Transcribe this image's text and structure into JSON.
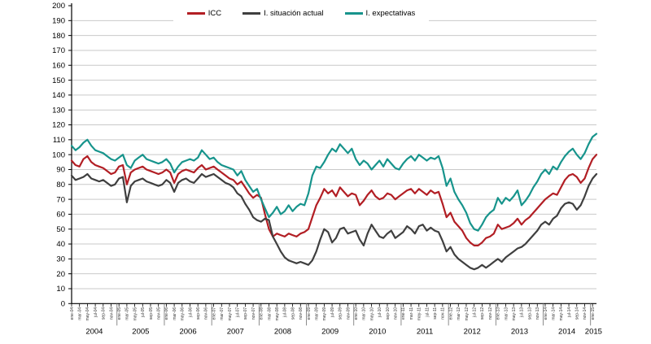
{
  "legend": {
    "items": [
      {
        "label": "ICC",
        "color": "#b21e24"
      },
      {
        "label": "I. situación actual",
        "color": "#3f3f3f"
      },
      {
        "label": "I. expectativas",
        "color": "#17948c"
      }
    ]
  },
  "chart_data": {
    "type": "line",
    "title": "",
    "xlabel": "",
    "ylabel": "",
    "ylim": [
      0,
      200
    ],
    "y_ticks": [
      0,
      10,
      20,
      30,
      40,
      50,
      60,
      70,
      80,
      90,
      100,
      110,
      120,
      130,
      140,
      150,
      160,
      170,
      180,
      190,
      200
    ],
    "grid": true,
    "legend_position": "top-center",
    "years": [
      "2004",
      "2005",
      "2006",
      "2007",
      "2008",
      "2009",
      "2010",
      "2011",
      "2012",
      "2013",
      "2014",
      "2015"
    ],
    "x_tick_labels": [
      "ene-04",
      "mar-04",
      "may-04",
      "jul-04",
      "sep-04",
      "nov-04",
      "ene-05",
      "mar-05",
      "may-05",
      "jul-05",
      "sep-05",
      "nov-05",
      "ene-06",
      "mar-06",
      "may-06",
      "jul-06",
      "sep-06",
      "nov-06",
      "ene-07",
      "mar-07",
      "may-07",
      "jul-07",
      "sep-07",
      "nov-07",
      "ene-08",
      "mar-08",
      "may-08",
      "jul-08",
      "sep-08",
      "nov-08",
      "ene-09",
      "mar-09",
      "may-09",
      "jul-09",
      "sep-09",
      "nov-09",
      "ene-10",
      "mar-10",
      "may-10",
      "jul-10",
      "sep-10",
      "nov-10",
      "ene-11",
      "mar-11",
      "may-11",
      "jul-11",
      "sep-11",
      "nov-11",
      "ene-12",
      "mar-12",
      "may-12",
      "jul-12",
      "sep-12",
      "nov-12",
      "ene-13",
      "mar-13",
      "may-13",
      "jul-13",
      "sep-13",
      "nov-13",
      "ene-14",
      "mar-14",
      "may-14",
      "jul-14",
      "sep-14",
      "nov-14",
      "ene-15"
    ],
    "x_range_note": "monthly points ene-2004 to feb-2015",
    "series": [
      {
        "name": "ICC",
        "color": "#b21e24",
        "values": [
          96,
          93,
          92,
          97,
          99,
          95,
          93,
          92,
          91,
          89,
          87,
          88,
          92,
          93,
          80,
          88,
          90,
          91,
          92,
          90,
          89,
          88,
          87,
          88,
          90,
          88,
          81,
          87,
          89,
          90,
          89,
          88,
          91,
          93,
          90,
          91,
          92,
          90,
          88,
          86,
          84,
          83,
          80,
          82,
          78,
          74,
          71,
          73,
          71,
          60,
          50,
          45,
          47,
          46,
          45,
          47,
          46,
          45,
          47,
          48,
          50,
          58,
          66,
          71,
          77,
          74,
          76,
          72,
          78,
          75,
          72,
          74,
          73,
          66,
          69,
          73,
          76,
          72,
          70,
          71,
          74,
          73,
          70,
          72,
          74,
          76,
          77,
          74,
          77,
          75,
          73,
          76,
          74,
          75,
          67,
          58,
          61,
          55,
          52,
          49,
          44,
          41,
          39,
          39,
          41,
          44,
          45,
          47,
          53,
          50,
          51,
          52,
          54,
          57,
          53,
          56,
          58,
          61,
          64,
          67,
          70,
          72,
          74,
          73,
          78,
          83,
          86,
          87,
          85,
          81,
          84,
          91,
          97,
          100
        ]
      },
      {
        "name": "I. situación actual",
        "color": "#3f3f3f",
        "values": [
          86,
          83,
          84,
          85,
          87,
          84,
          83,
          82,
          83,
          81,
          79,
          80,
          84,
          85,
          68,
          79,
          82,
          83,
          84,
          82,
          81,
          80,
          79,
          80,
          83,
          81,
          75,
          81,
          83,
          84,
          82,
          81,
          84,
          87,
          85,
          86,
          87,
          85,
          83,
          81,
          80,
          78,
          74,
          72,
          67,
          63,
          58,
          56,
          55,
          57,
          56,
          45,
          40,
          35,
          31,
          29,
          28,
          27,
          28,
          27,
          26,
          29,
          35,
          43,
          50,
          48,
          41,
          44,
          50,
          51,
          47,
          48,
          49,
          43,
          39,
          47,
          53,
          49,
          45,
          44,
          47,
          49,
          44,
          46,
          48,
          52,
          50,
          47,
          52,
          53,
          49,
          51,
          49,
          48,
          42,
          35,
          38,
          33,
          30,
          28,
          26,
          24,
          23,
          24,
          26,
          24,
          26,
          28,
          30,
          28,
          31,
          33,
          35,
          37,
          38,
          40,
          43,
          46,
          49,
          53,
          55,
          53,
          57,
          59,
          64,
          67,
          68,
          67,
          63,
          66,
          72,
          79,
          84,
          87
        ]
      },
      {
        "name": "I. expectativas",
        "color": "#17948c",
        "values": [
          106,
          103,
          105,
          108,
          110,
          106,
          103,
          102,
          101,
          99,
          97,
          96,
          98,
          100,
          93,
          91,
          96,
          98,
          100,
          97,
          96,
          95,
          94,
          95,
          97,
          94,
          88,
          92,
          95,
          96,
          97,
          96,
          98,
          103,
          100,
          97,
          98,
          95,
          93,
          92,
          91,
          90,
          86,
          89,
          83,
          79,
          75,
          77,
          70,
          64,
          58,
          61,
          65,
          60,
          62,
          66,
          62,
          65,
          67,
          66,
          74,
          86,
          92,
          91,
          95,
          100,
          104,
          102,
          107,
          104,
          101,
          104,
          97,
          93,
          96,
          94,
          90,
          93,
          96,
          92,
          97,
          94,
          91,
          90,
          94,
          97,
          99,
          96,
          100,
          98,
          96,
          98,
          97,
          99,
          91,
          79,
          84,
          75,
          70,
          66,
          61,
          54,
          50,
          49,
          53,
          58,
          61,
          63,
          71,
          67,
          71,
          69,
          72,
          76,
          66,
          69,
          73,
          78,
          82,
          87,
          90,
          87,
          92,
          90,
          95,
          99,
          102,
          104,
          100,
          97,
          101,
          107,
          112,
          114
        ]
      }
    ],
    "colors": {
      "gridline": "#c9c9c9",
      "axis": "#000000",
      "tick_text": "#333333"
    }
  }
}
